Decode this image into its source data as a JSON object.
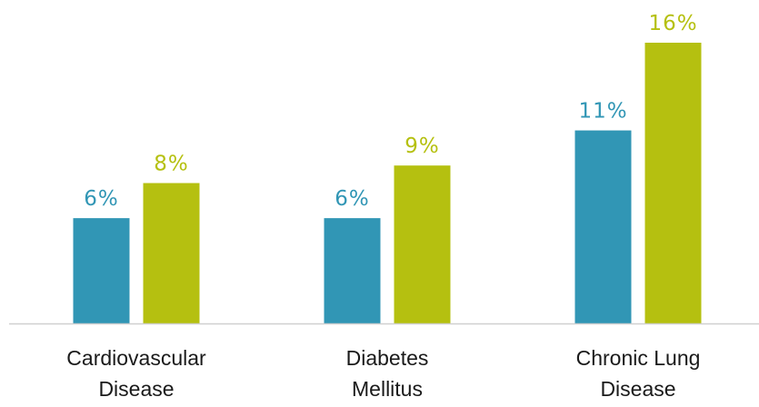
{
  "chart_data": {
    "type": "bar",
    "categories": [
      [
        "Cardiovascular",
        "Disease"
      ],
      [
        "Diabetes",
        "Mellitus"
      ],
      [
        "Chronic Lung",
        "Disease"
      ]
    ],
    "series": [
      {
        "color": "#3196b5",
        "values": [
          6,
          6,
          11
        ],
        "labels": [
          "6%",
          "6%",
          "11%"
        ]
      },
      {
        "color": "#b5c010",
        "values": [
          8,
          9,
          16
        ],
        "labels": [
          "8%",
          "9%",
          "16%"
        ]
      }
    ],
    "ylim": [
      0,
      16
    ],
    "grid": false,
    "legend": "none",
    "axis_color": "#d0d0d0"
  }
}
